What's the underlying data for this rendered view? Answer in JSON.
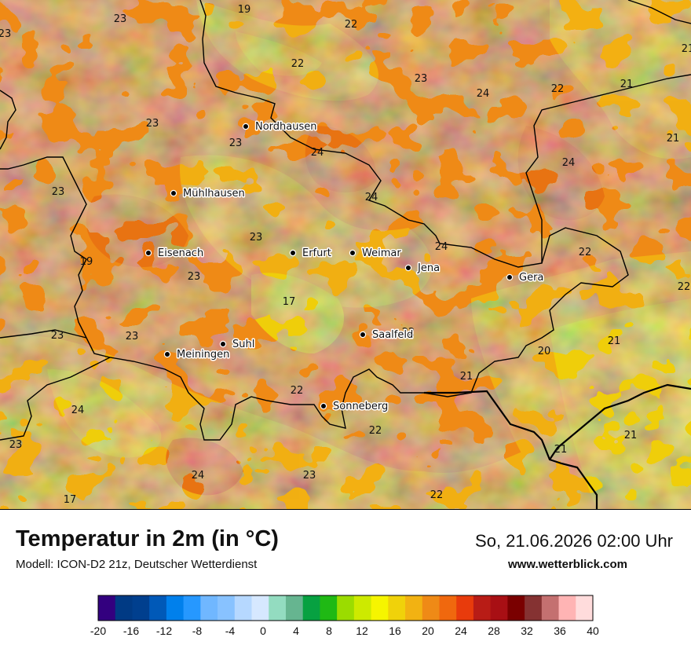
{
  "map": {
    "region": "Thüringen",
    "colors": {
      "base": "#ef8a16",
      "light": "#f2b212",
      "yellow": "#f0d20a",
      "dark": "#e87212",
      "border": "#000000"
    },
    "cities": [
      {
        "name": "Nordhausen",
        "id": "nordhausen"
      },
      {
        "name": "Mühlhausen",
        "id": "muehlhausen"
      },
      {
        "name": "Eisenach",
        "id": "eisenach"
      },
      {
        "name": "Erfurt",
        "id": "erfurt"
      },
      {
        "name": "Weimar",
        "id": "weimar"
      },
      {
        "name": "Jena",
        "id": "jena"
      },
      {
        "name": "Gera",
        "id": "gera"
      },
      {
        "name": "Saalfeld",
        "id": "saalfeld"
      },
      {
        "name": "Suhl",
        "id": "suhl"
      },
      {
        "name": "Meiningen",
        "id": "meiningen"
      },
      {
        "name": "Sonneberg",
        "id": "sonneberg"
      }
    ],
    "values": [
      "19",
      "23",
      "22",
      "23",
      "22",
      "23",
      "24",
      "22",
      "21",
      "21",
      "23",
      "23",
      "24",
      "21",
      "24",
      "23",
      "24",
      "23",
      "19",
      "24",
      "22",
      "22",
      "23",
      "17",
      "23",
      "23",
      "22",
      "21",
      "20",
      "21",
      "22",
      "24",
      "22",
      "21",
      "23",
      "21",
      "24",
      "23",
      "22",
      "17"
    ]
  },
  "footer": {
    "title": "Temperatur in 2m (in °C)",
    "model": "Modell: ICON-D2 21z, Deutscher Wetterdienst",
    "datetime": "So, 21.06.2026 02:00 Uhr",
    "website": "www.wetterblick.com"
  },
  "legend": {
    "unit": "°C",
    "min": -20,
    "max": 40,
    "ticks": [
      "-20",
      "-16",
      "-12",
      "-8",
      "-4",
      "0",
      "4",
      "8",
      "12",
      "16",
      "20",
      "24",
      "28",
      "32",
      "36",
      "40"
    ],
    "colors": [
      "#33007f",
      "#003a84",
      "#003f8e",
      "#0059b8",
      "#0080ec",
      "#2698ff",
      "#70b7ff",
      "#88c2ff",
      "#b6d8ff",
      "#d6e8ff",
      "#93dcc0",
      "#66b590",
      "#07a141",
      "#1fb914",
      "#9bdc00",
      "#cdea00",
      "#f6f500",
      "#f0d20a",
      "#f2b212",
      "#ef8a16",
      "#f0680e",
      "#e83b0c",
      "#b81c16",
      "#a80f14",
      "#7a0000",
      "#853232",
      "#c47070",
      "#ffb4b4",
      "#ffdcdc"
    ]
  }
}
